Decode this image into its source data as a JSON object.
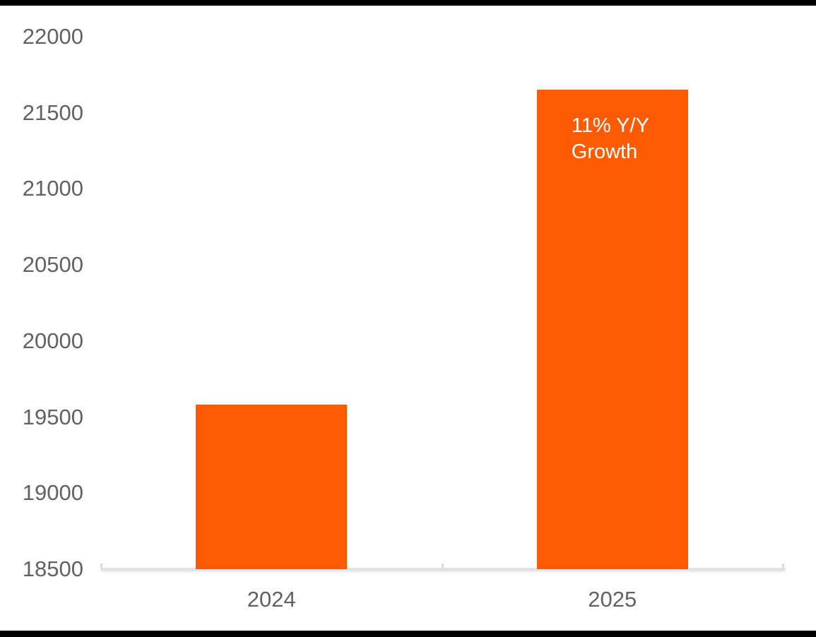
{
  "chart_data": {
    "type": "bar",
    "title": "",
    "categories": [
      "2024",
      "2025"
    ],
    "values": [
      19580,
      21650
    ],
    "bar_color": "#FC5A03",
    "annotation": {
      "lines": [
        "11% Y/Y",
        "Growth"
      ],
      "category": "2025",
      "color": "#FFFFFF"
    },
    "xlabel": "",
    "ylabel": "",
    "ylim": [
      18500,
      22000
    ],
    "ytick_interval": 500,
    "yticks": [
      "18500",
      "19000",
      "19500",
      "20000",
      "20500",
      "21000",
      "21500",
      "22000"
    ],
    "grid": false,
    "legend": "none",
    "axis_color": "#E2E2E2",
    "tick_label_color": "#616161"
  },
  "frame": {
    "letterbox_color": "#000000"
  }
}
